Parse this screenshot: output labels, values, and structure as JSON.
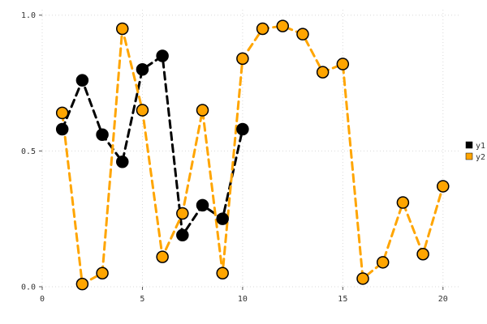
{
  "chart_data": {
    "type": "line",
    "title": "",
    "xlabel": "",
    "ylabel": "",
    "xlim": [
      0,
      20.9
    ],
    "ylim": [
      0,
      1.02
    ],
    "xticks": [
      0,
      5,
      10,
      15,
      20
    ],
    "xtick_labels": [
      "0",
      "5",
      "10",
      "15",
      "20"
    ],
    "yticks": [
      0,
      0.5,
      1.0
    ],
    "ytick_labels": [
      "0.0",
      "0.5",
      "1.0"
    ],
    "grid": true,
    "grid_style": "dotted",
    "line_style": "dashed",
    "marker": "circle",
    "legend_position": "right-outside",
    "series": [
      {
        "name": "y1",
        "color": "#000000",
        "x": [
          1,
          2,
          3,
          4,
          5,
          6,
          7,
          8,
          9,
          10
        ],
        "values": [
          0.58,
          0.76,
          0.56,
          0.46,
          0.8,
          0.85,
          0.19,
          0.3,
          0.25,
          0.58
        ]
      },
      {
        "name": "y2",
        "color": "#FFA500",
        "x": [
          1,
          2,
          3,
          4,
          5,
          6,
          7,
          8,
          9,
          10,
          11,
          12,
          13,
          14,
          15,
          16,
          17,
          18,
          19,
          20
        ],
        "values": [
          0.64,
          0.01,
          0.05,
          0.95,
          0.65,
          0.11,
          0.27,
          0.65,
          0.05,
          0.84,
          0.95,
          0.96,
          0.93,
          0.79,
          0.82,
          0.03,
          0.09,
          0.31,
          0.12,
          0.37
        ]
      }
    ],
    "colors": {
      "grid": "#d9d9d9",
      "tick": "#555555",
      "text": "#333333",
      "background": "#ffffff",
      "marker_edge": "#000000"
    }
  },
  "legend": {
    "items": [
      {
        "label": "y1",
        "color": "#000000"
      },
      {
        "label": "y2",
        "color": "#FFA500"
      }
    ]
  }
}
